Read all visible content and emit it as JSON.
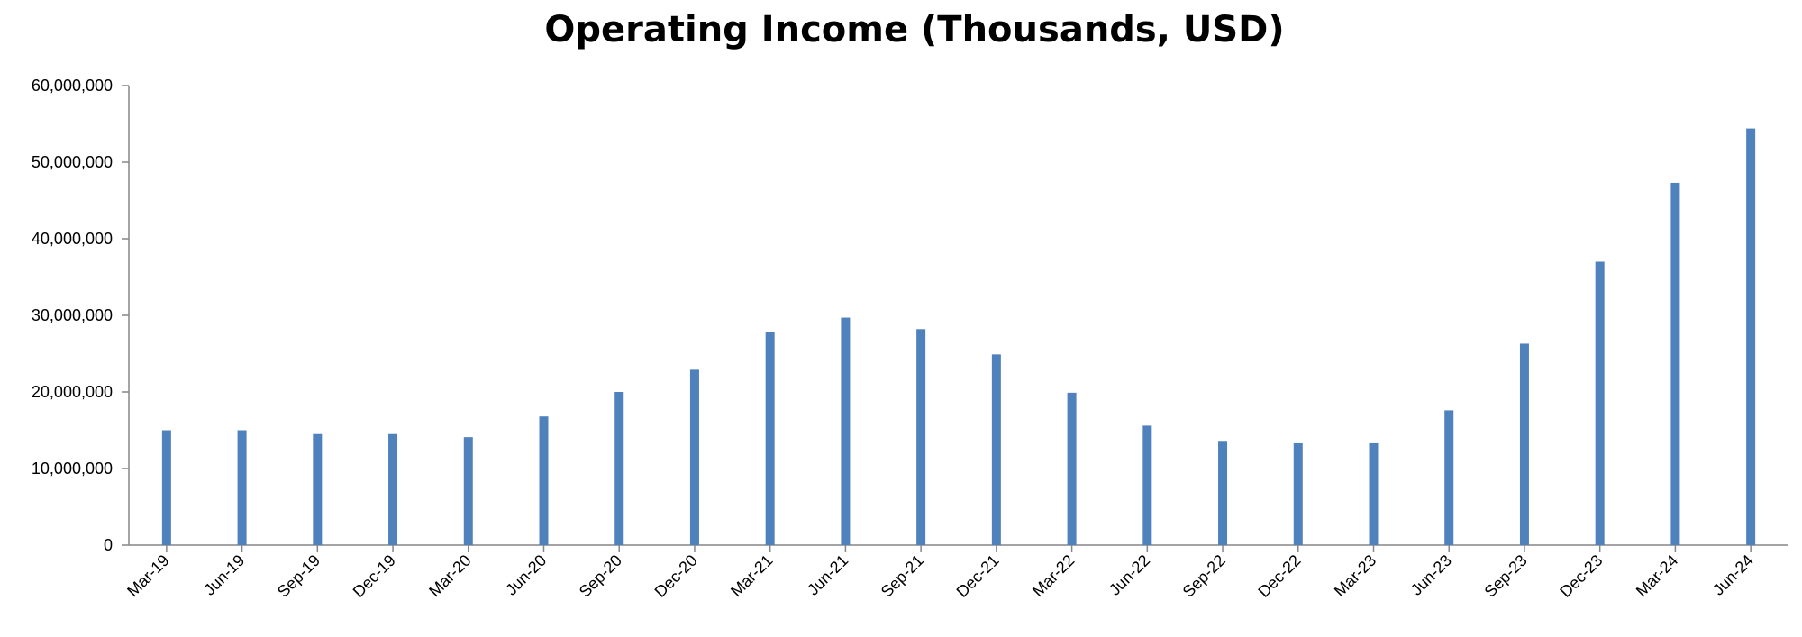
{
  "chart_data": {
    "type": "bar",
    "title": "Operating Income (Thousands, USD)",
    "xlabel": "",
    "ylabel": "",
    "categories": [
      "Mar-19",
      "Jun-19",
      "Sep-19",
      "Dec-19",
      "Mar-20",
      "Jun-20",
      "Sep-20",
      "Dec-20",
      "Mar-21",
      "Jun-21",
      "Sep-21",
      "Dec-21",
      "Mar-22",
      "Jun-22",
      "Sep-22",
      "Dec-22",
      "Mar-23",
      "Jun-23",
      "Sep-23",
      "Dec-23",
      "Mar-24",
      "Jun-24"
    ],
    "values": [
      15000000,
      15000000,
      14500000,
      14500000,
      14100000,
      16800000,
      20000000,
      22900000,
      27800000,
      29700000,
      28200000,
      24900000,
      19900000,
      15600000,
      13500000,
      13300000,
      13300000,
      17600000,
      26300000,
      37000000,
      47300000,
      54400000
    ],
    "ylim": [
      0,
      60000000
    ],
    "yticks": [
      0,
      10000000,
      20000000,
      30000000,
      40000000,
      50000000,
      60000000
    ],
    "ytick_labels": [
      "0",
      "10,000,000",
      "20,000,000",
      "30,000,000",
      "40,000,000",
      "50,000,000",
      "60,000,000"
    ],
    "grid": false,
    "legend": "none",
    "bar_color": "#4F81BD"
  }
}
